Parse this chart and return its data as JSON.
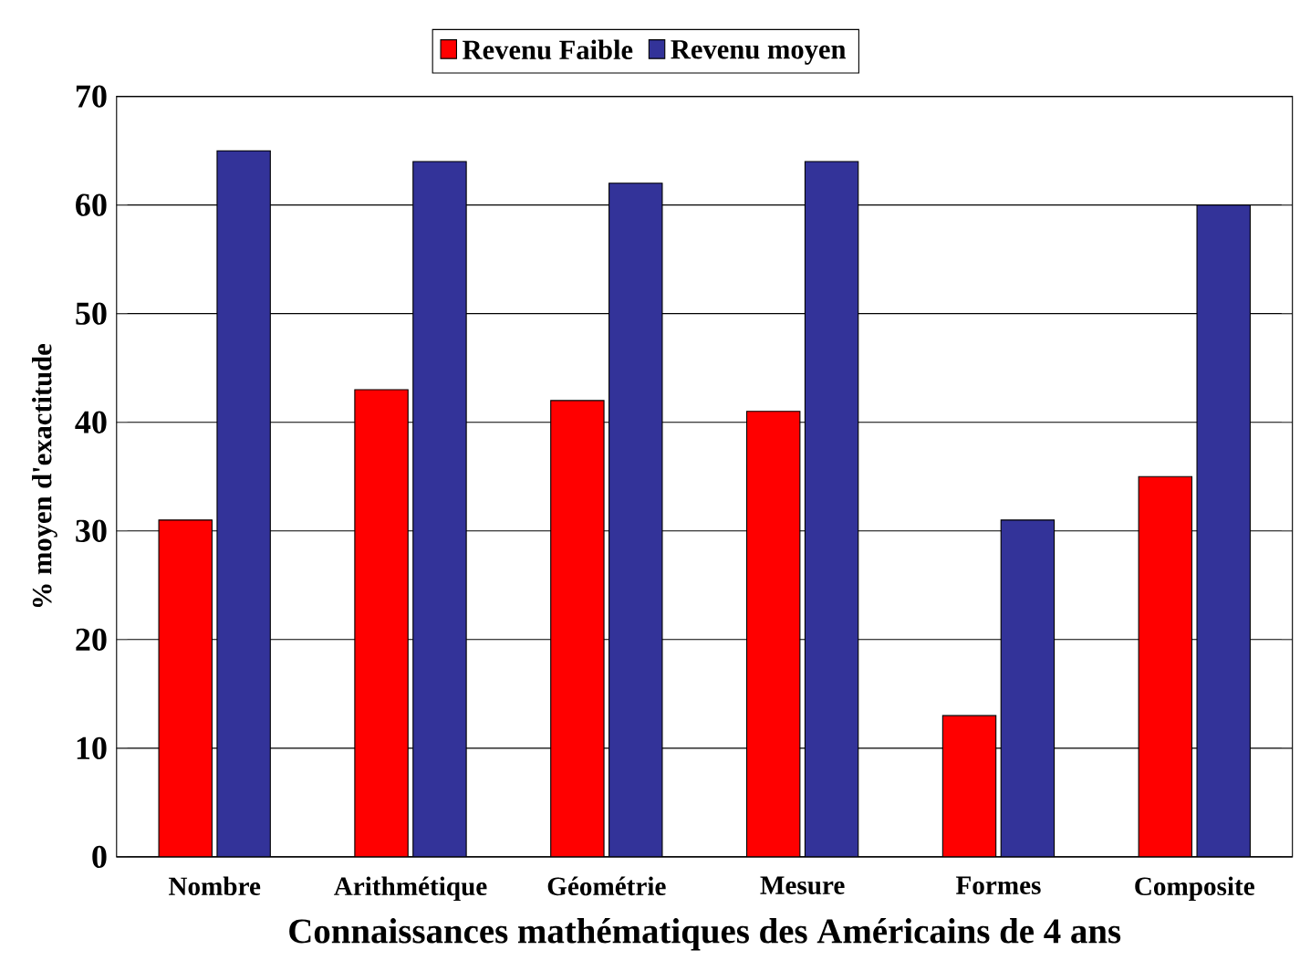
{
  "chart_data": {
    "type": "bar",
    "xlabel": "Connaissances mathématiques des Américains de 4 ans",
    "ylabel": "% moyen d'exactitude",
    "categories": [
      "Nombre",
      "Arithmétique",
      "Géométrie",
      "Mesure",
      "Formes",
      "Composite"
    ],
    "series": [
      {
        "name": "Revenu Faible",
        "color": "#ff0000",
        "values": [
          31,
          43,
          42,
          41,
          13,
          35
        ]
      },
      {
        "name": "Revenu moyen",
        "color": "#333399",
        "values": [
          65,
          64,
          62,
          64,
          31,
          60
        ]
      }
    ],
    "ylim": [
      0,
      70
    ],
    "yticks": [
      0,
      10,
      20,
      30,
      40,
      50,
      60,
      70
    ],
    "grid": "y",
    "legend": "top"
  }
}
